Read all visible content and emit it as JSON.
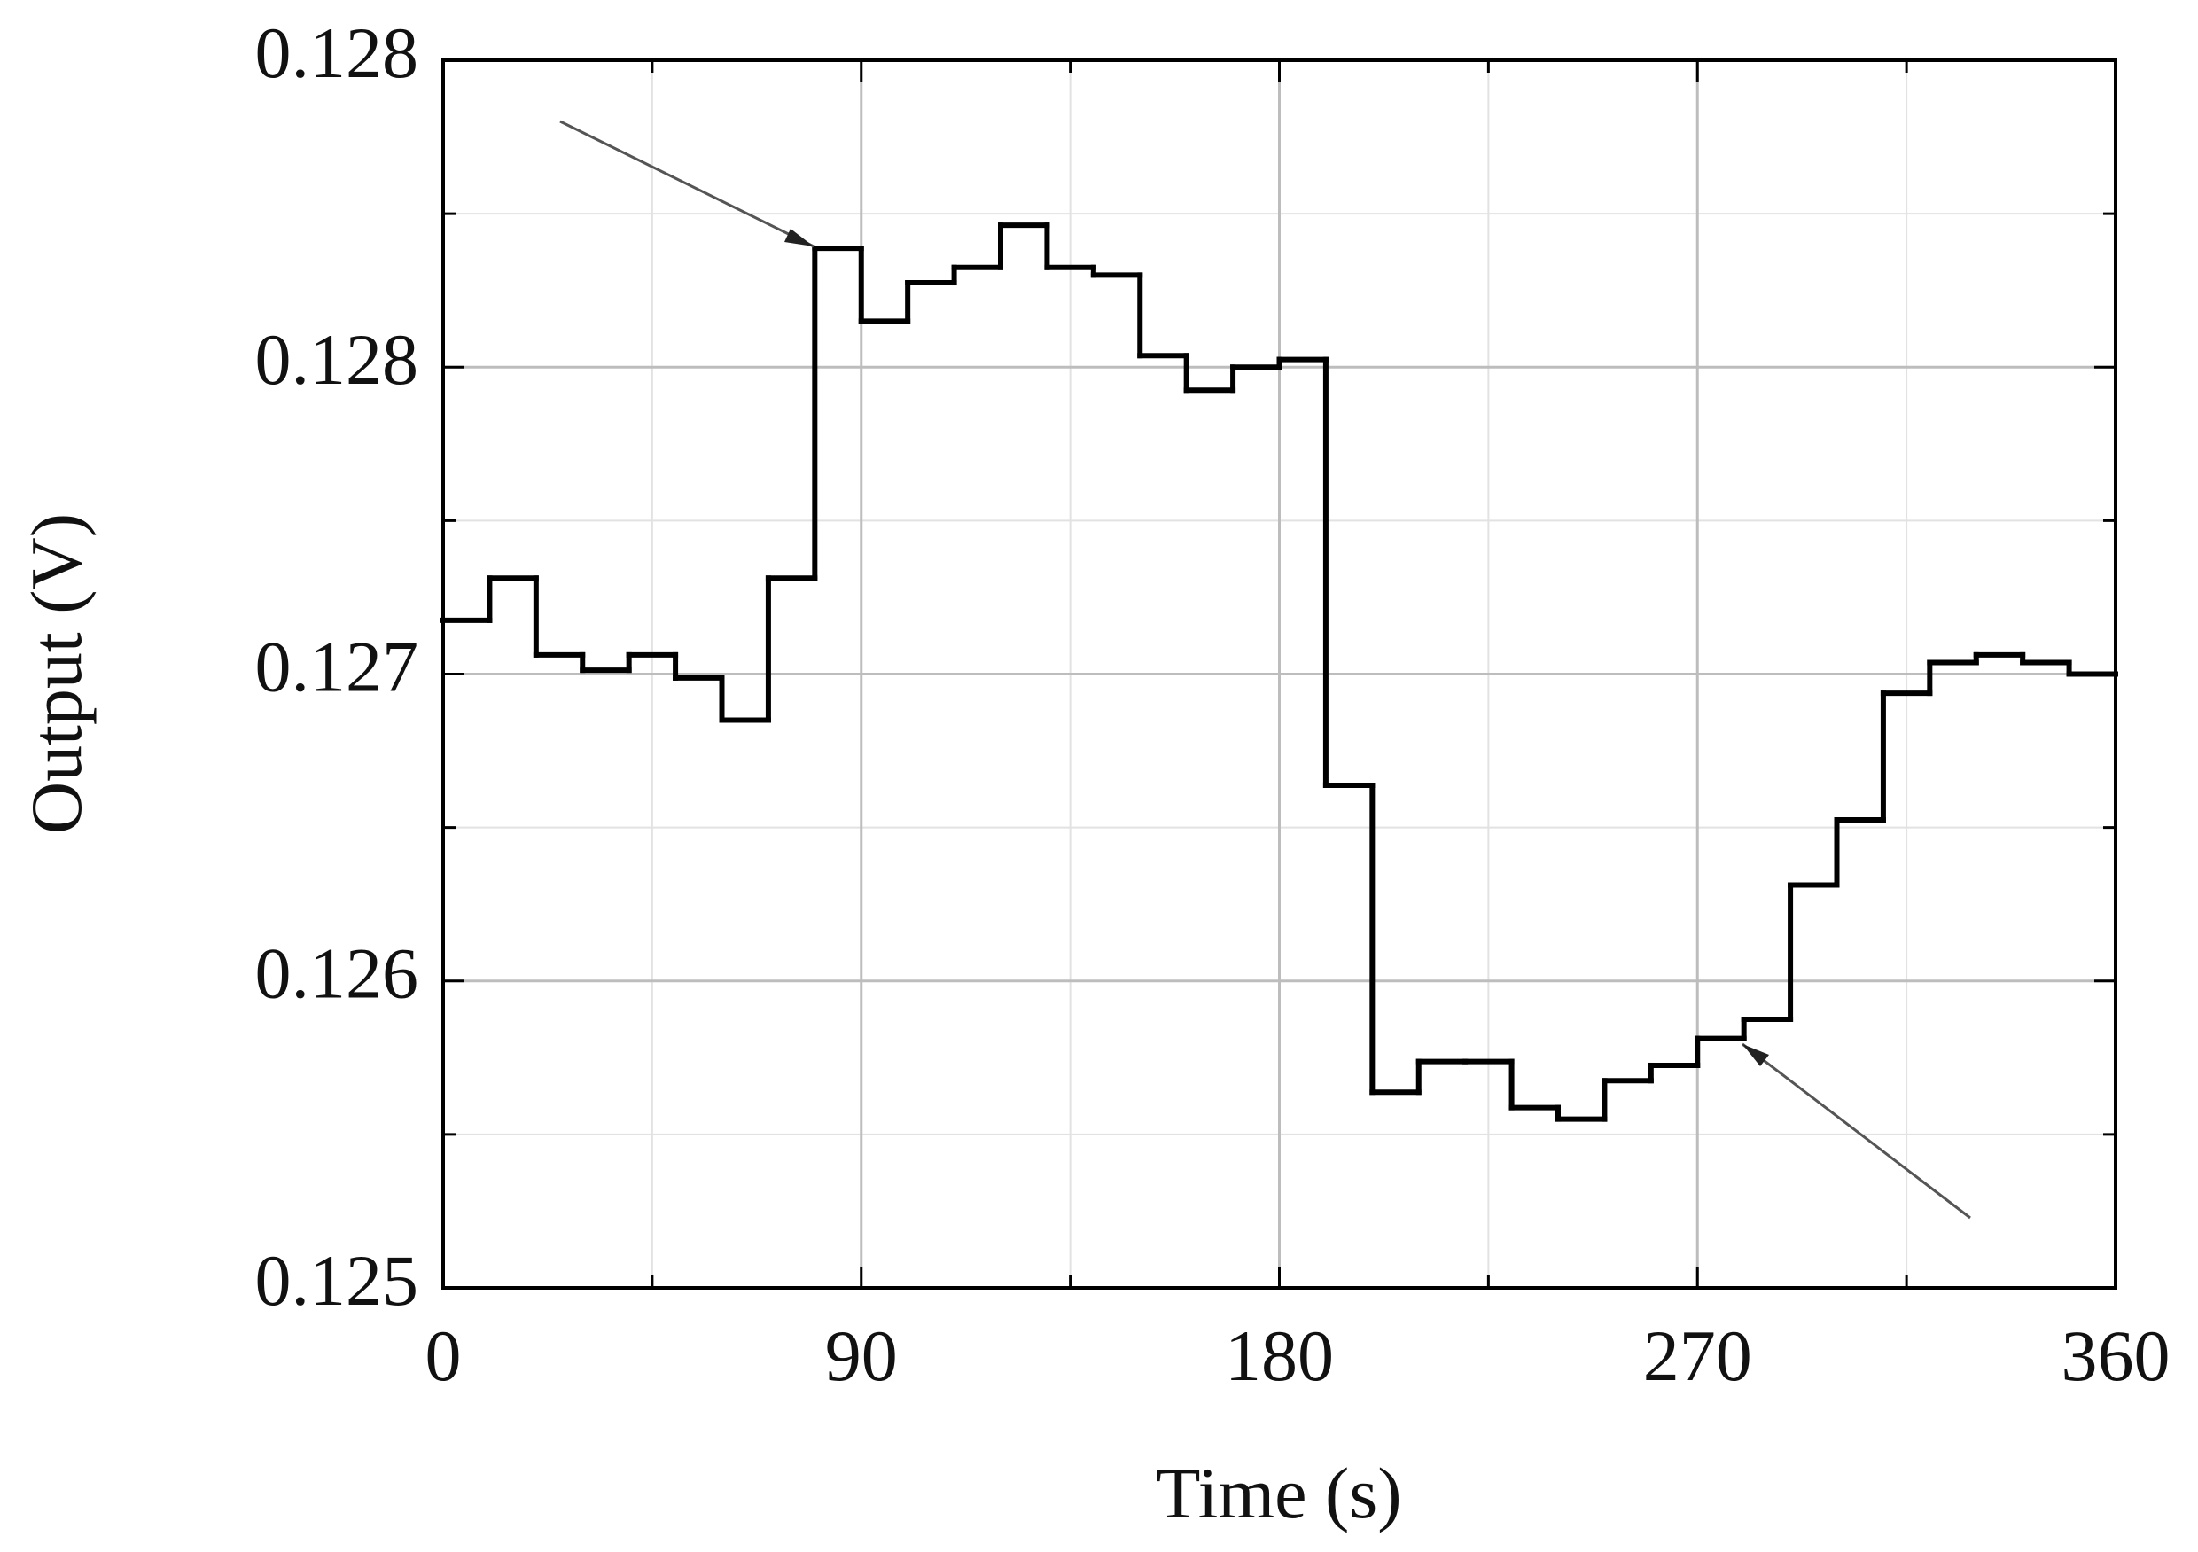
{
  "chart_data": {
    "type": "step",
    "xlabel": "Time (s)",
    "ylabel": "Output (V)",
    "x": [
      0,
      10,
      20,
      30,
      40,
      50,
      60,
      70,
      80,
      90,
      100,
      110,
      120,
      130,
      140,
      150,
      160,
      170,
      180,
      190,
      200,
      210,
      220,
      230,
      240,
      250,
      260,
      270,
      280,
      290,
      300,
      310,
      320,
      330,
      340,
      350
    ],
    "values": [
      0.12694,
      0.12705,
      0.12685,
      0.12681,
      0.12685,
      0.12679,
      0.12668,
      0.12705,
      0.12791,
      0.12772,
      0.12782,
      0.12786,
      0.12797,
      0.12786,
      0.12784,
      0.12763,
      0.12754,
      0.1276,
      0.12762,
      0.12651,
      0.12571,
      0.12579,
      0.12579,
      0.12567,
      0.12564,
      0.12574,
      0.12578,
      0.12585,
      0.1259,
      0.12625,
      0.12642,
      0.12675,
      0.12683,
      0.12685,
      0.12683,
      0.1268
    ],
    "color": "#000000",
    "xlim": [
      0,
      360
    ],
    "xticks": [
      0,
      90,
      180,
      270,
      360
    ],
    "ylim": [
      0.1252,
      0.1284
    ],
    "yticks": [
      {
        "value": 0.1252,
        "label": "0.125"
      },
      {
        "value": 0.126,
        "label": "0.126"
      },
      {
        "value": 0.1268,
        "label": "0.127"
      },
      {
        "value": 0.1276,
        "label": "0.128"
      },
      {
        "value": 0.1284,
        "label": "0.128"
      }
    ],
    "grid": true
  }
}
